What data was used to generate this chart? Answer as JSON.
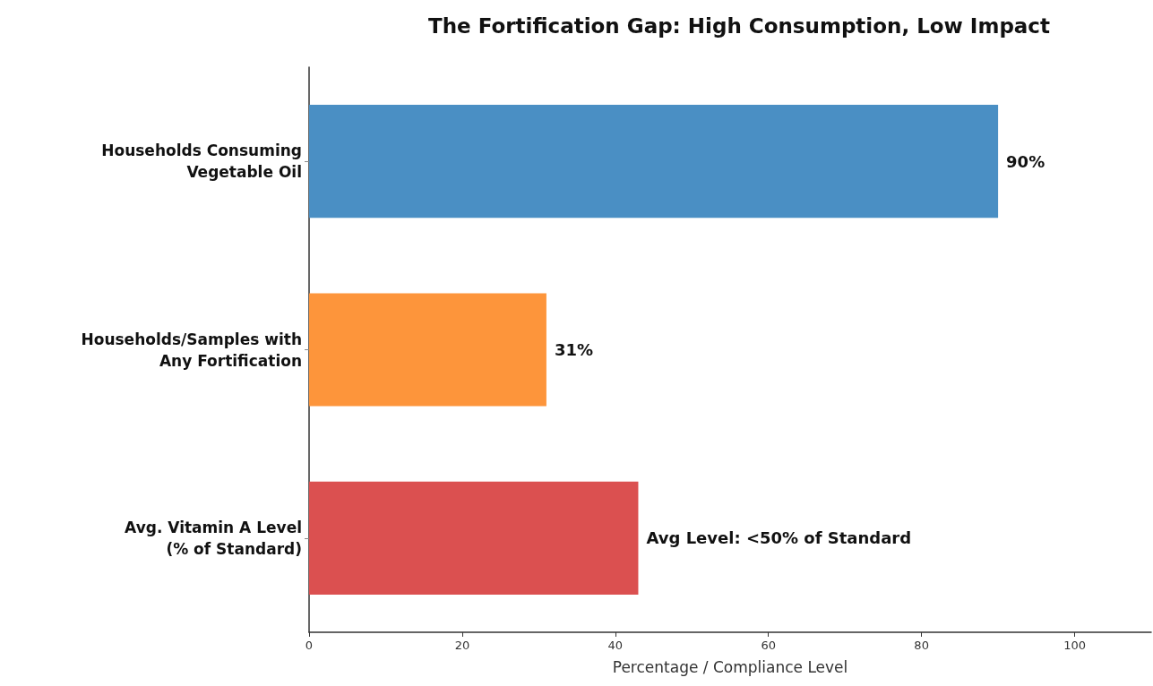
{
  "chart_data": {
    "type": "bar",
    "orientation": "horizontal",
    "title": "The Fortification Gap: High Consumption, Low Impact",
    "xlabel": "Percentage / Compliance Level",
    "categories": [
      "Households Consuming\nVegetable Oil",
      "Households/Samples with\nAny Fortification",
      "Avg. Vitamin A Level\n(% of Standard)"
    ],
    "values": [
      90,
      31,
      43
    ],
    "colors": [
      "#4a8fc4",
      "#fd953b",
      "#db5050"
    ],
    "value_labels": [
      "90%",
      "31%",
      "Avg Level: <50% of Standard"
    ],
    "xlim": [
      0,
      110
    ],
    "xticks": [
      0,
      20,
      40,
      60,
      80,
      100
    ],
    "grid": false
  }
}
